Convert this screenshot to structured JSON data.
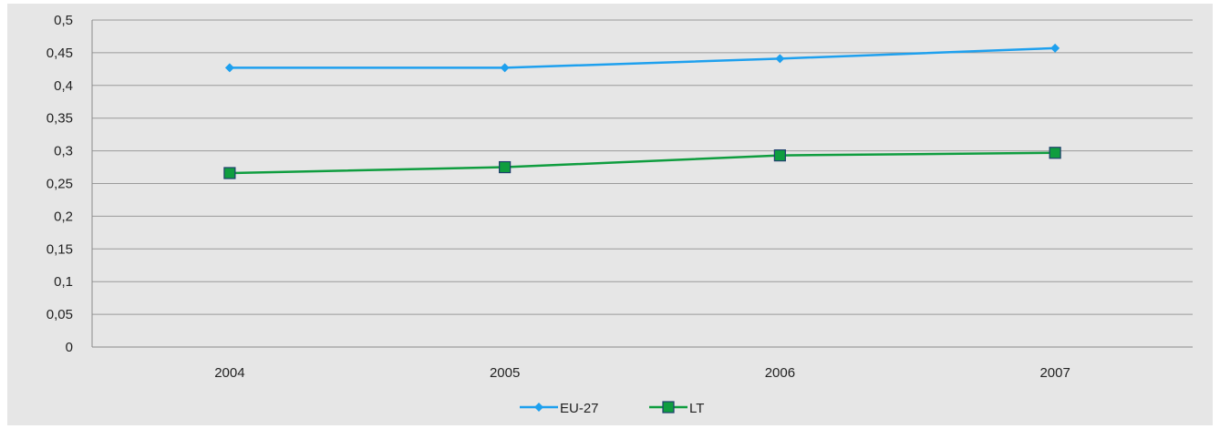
{
  "chart_data": {
    "type": "line",
    "title": "",
    "xlabel": "",
    "ylabel": "",
    "categories": [
      "2004",
      "2005",
      "2006",
      "2007"
    ],
    "ylim": [
      0,
      0.5
    ],
    "yticks": [
      0,
      0.05,
      0.1,
      0.15,
      0.2,
      0.25,
      0.3,
      0.35,
      0.4,
      0.45,
      0.5
    ],
    "ytick_labels": [
      "0",
      "0,05",
      "0,1",
      "0,15",
      "0,2",
      "0,25",
      "0,3",
      "0,35",
      "0,4",
      "0,45",
      "0,5"
    ],
    "grid": true,
    "legend_position": "bottom",
    "background": "#e6e6e6",
    "series": [
      {
        "name": "EU-27",
        "values": [
          0.427,
          0.427,
          0.441,
          0.457
        ],
        "color": "#1ea0ee",
        "marker": "diamond"
      },
      {
        "name": "LT",
        "values": [
          0.266,
          0.275,
          0.293,
          0.297
        ],
        "color": "#0f9d3f",
        "marker": "square"
      }
    ]
  }
}
